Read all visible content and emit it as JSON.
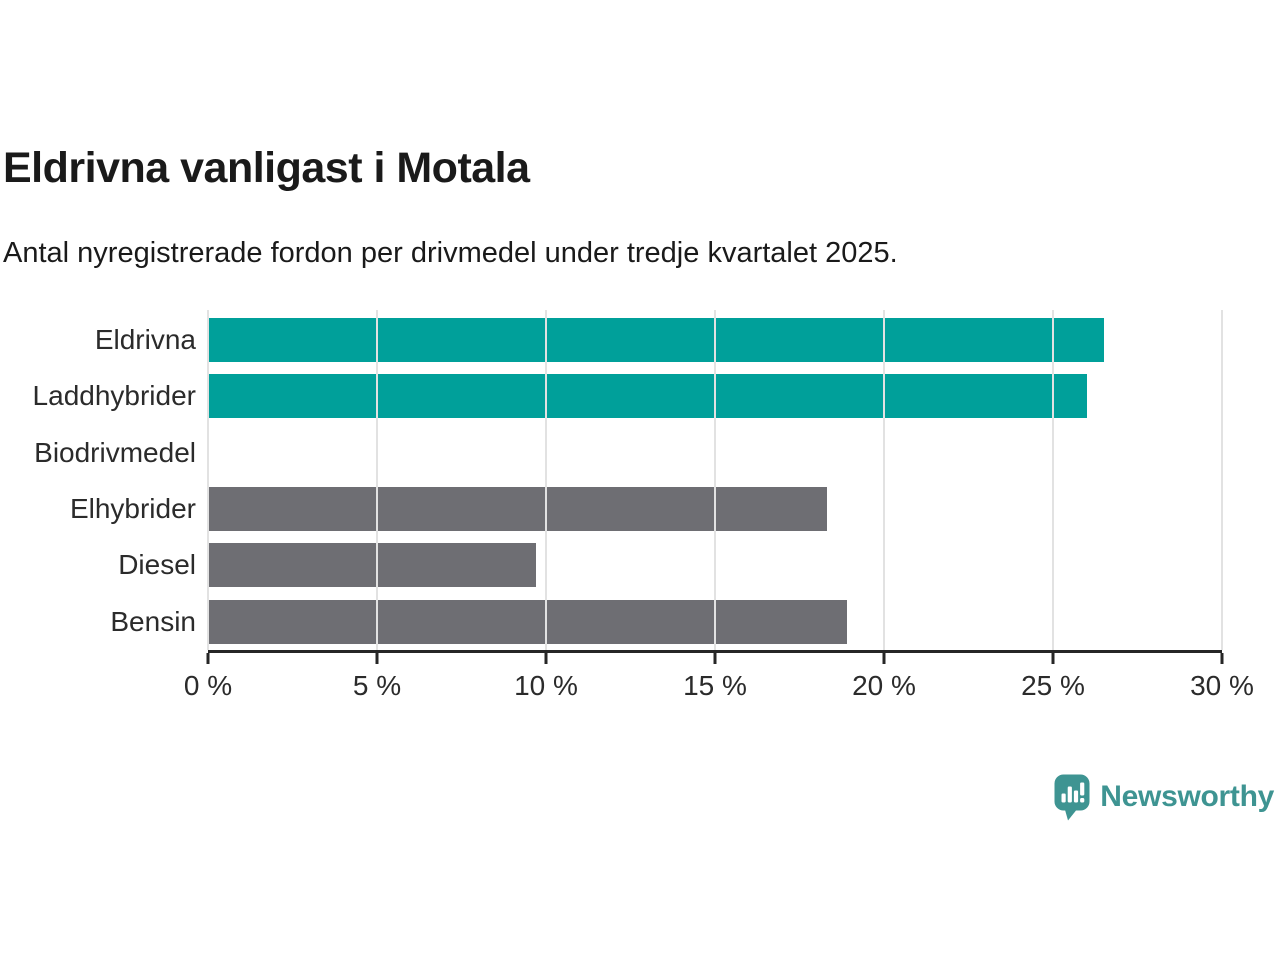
{
  "header": {
    "title": "Eldrivna vanligast i Motala",
    "subtitle": "Antal nyregistrerade fordon per drivmedel under tredje kvartalet 2025."
  },
  "chart_data": {
    "type": "bar",
    "orientation": "horizontal",
    "title": "Eldrivna vanligast i Motala",
    "subtitle": "Antal nyregistrerade fordon per drivmedel under tredje kvartalet 2025.",
    "categories": [
      "Eldrivna",
      "Laddhybrider",
      "Biodrivmedel",
      "Elhybrider",
      "Diesel",
      "Bensin"
    ],
    "values": [
      26.5,
      26.0,
      0,
      18.3,
      9.7,
      18.9
    ],
    "unit": "%",
    "bar_colors": [
      "#00A09A",
      "#00A09A",
      "#6E6E73",
      "#6E6E73",
      "#6E6E73",
      "#6E6E73"
    ],
    "highlight_color": "#00A09A",
    "default_color": "#6E6E73",
    "xlabel": "",
    "ylabel": "",
    "xlim": [
      0,
      30
    ],
    "x_ticks": [
      {
        "value": 0,
        "label": "0 %"
      },
      {
        "value": 5,
        "label": "5 %"
      },
      {
        "value": 10,
        "label": "10 %"
      },
      {
        "value": 15,
        "label": "15 %"
      },
      {
        "value": 20,
        "label": "20 %"
      },
      {
        "value": 25,
        "label": "25 %"
      },
      {
        "value": 30,
        "label": "30 %"
      }
    ],
    "grid": "vertical-only",
    "gridline_color": "#e2e2e2",
    "axis_color": "#262626",
    "legend": "none"
  },
  "footer": {
    "brand_name": "Newsworthy",
    "brand_color": "#3E9492",
    "logo_icon": "bar-chart-speech-bubble-icon"
  }
}
